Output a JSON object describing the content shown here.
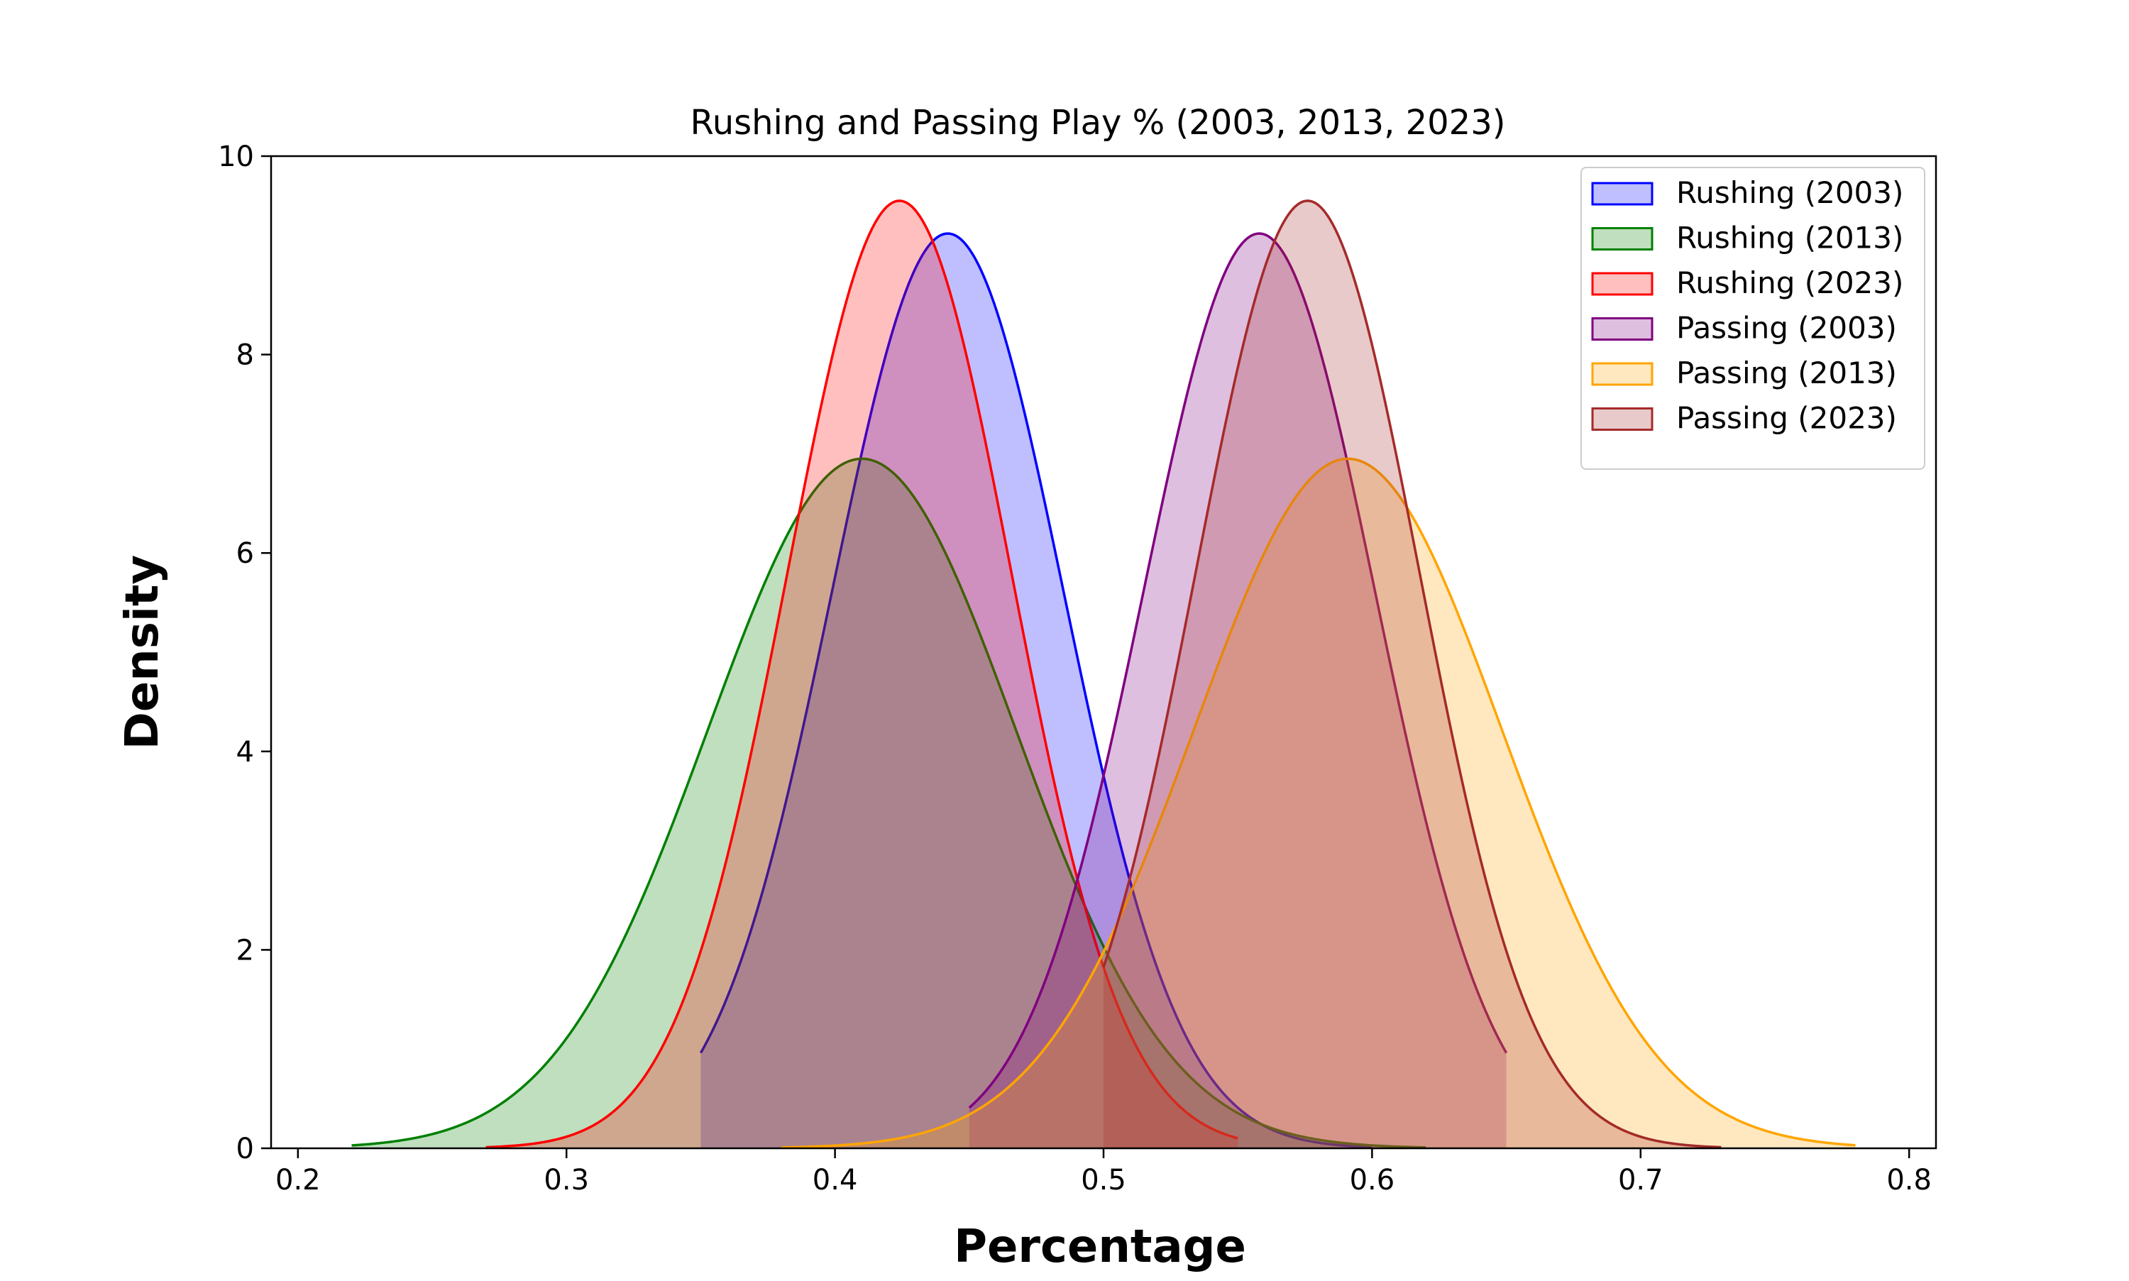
{
  "chart_data": {
    "type": "area",
    "title": "Rushing and Passing Play % (2003, 2013, 2023)",
    "xlabel": "Percentage",
    "ylabel": "Density",
    "xlim": [
      0.19,
      0.81
    ],
    "ylim": [
      0,
      10
    ],
    "x_ticks": [
      "0.2",
      "0.3",
      "0.4",
      "0.5",
      "0.6",
      "0.7",
      "0.8"
    ],
    "y_ticks": [
      "0",
      "2",
      "4",
      "6",
      "8",
      "10"
    ],
    "grid": false,
    "legend_position": "top-right",
    "series": [
      {
        "name": "Rushing (2003)",
        "color": "#0000ff",
        "peak_x": 0.442,
        "peak_density": 9.22,
        "x_range": [
          0.35,
          0.6
        ]
      },
      {
        "name": "Rushing (2013)",
        "color": "#008000",
        "peak_x": 0.41,
        "peak_density": 6.95,
        "x_range": [
          0.22,
          0.62
        ]
      },
      {
        "name": "Rushing (2023)",
        "color": "#ff0000",
        "peak_x": 0.424,
        "peak_density": 9.55,
        "x_range": [
          0.27,
          0.55
        ]
      },
      {
        "name": "Passing (2003)",
        "color": "#800080",
        "peak_x": 0.558,
        "peak_density": 9.22,
        "x_range": [
          0.45,
          0.65
        ]
      },
      {
        "name": "Passing (2013)",
        "color": "#ffa500",
        "peak_x": 0.591,
        "peak_density": 6.95,
        "x_range": [
          0.38,
          0.78
        ]
      },
      {
        "name": "Passing (2023)",
        "color": "#a52a2a",
        "peak_x": 0.576,
        "peak_density": 9.55,
        "x_range": [
          0.5,
          0.73
        ]
      }
    ]
  }
}
